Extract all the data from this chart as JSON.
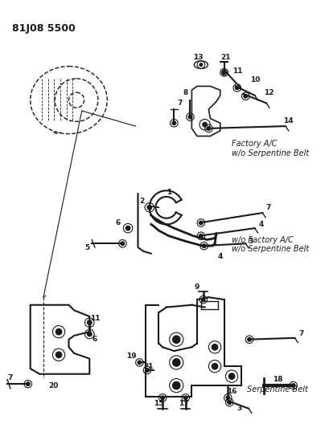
{
  "title": "81J08 5500",
  "bg_color": "#ffffff",
  "line_color": "#1a1a1a",
  "text_color": "#1a1a1a",
  "fig_w": 4.04,
  "fig_h": 5.33,
  "dpi": 100,
  "label_factory_ac": "Factory A/C\nw/o Serpentine Belt",
  "label_wo_factory": "w/o Factory A/C\nw/o Serpentine Belt",
  "label_serpentine": "Serpentine Belt",
  "label_fs": 7.0
}
